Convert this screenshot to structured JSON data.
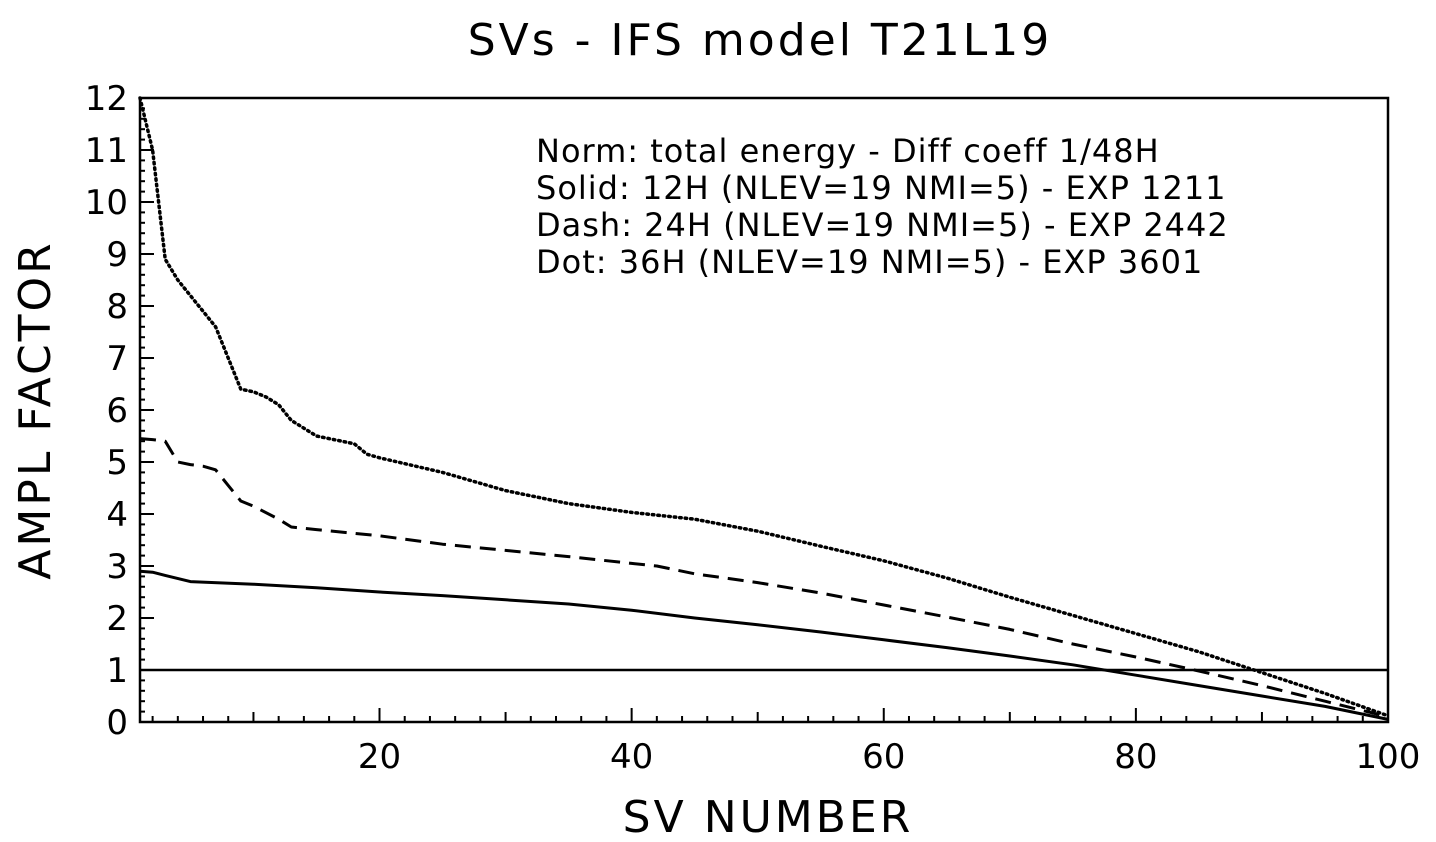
{
  "chart_data": {
    "type": "line",
    "title": "SVs - IFS model T21L19",
    "xlabel": "SV NUMBER",
    "ylabel": "AMPL FACTOR",
    "xlim": [
      1,
      100
    ],
    "ylim": [
      0,
      12
    ],
    "x_ticks": [
      20,
      40,
      60,
      80,
      100
    ],
    "y_ticks": [
      0,
      1,
      2,
      3,
      4,
      5,
      6,
      7,
      8,
      9,
      10,
      11,
      12
    ],
    "grid": false,
    "legend_placement": "top-right",
    "legend_lines": [
      "Norm: total energy - Diff coeff 1/48H",
      "Solid: 12H (NLEV=19 NMI=5) - EXP 1211",
      "Dash: 24H (NLEV=19 NMI=5) - EXP 2442",
      "Dot: 36H (NLEV=19 NMI=5) - EXP 3601"
    ],
    "reference_line": {
      "y": 1,
      "style": "solid"
    },
    "series": [
      {
        "style": "solid",
        "x": [
          1,
          2,
          3,
          5,
          10,
          15,
          20,
          25,
          30,
          35,
          40,
          45,
          50,
          55,
          60,
          65,
          70,
          75,
          80,
          85,
          90,
          95,
          100
        ],
        "y": [
          2.9,
          2.88,
          2.82,
          2.7,
          2.65,
          2.58,
          2.5,
          2.43,
          2.35,
          2.27,
          2.15,
          2.0,
          1.87,
          1.73,
          1.58,
          1.43,
          1.27,
          1.1,
          0.9,
          0.7,
          0.5,
          0.3,
          0.05
        ]
      },
      {
        "style": "dashed",
        "x": [
          1,
          2,
          3,
          4,
          5,
          6,
          7,
          8,
          9,
          10,
          12,
          13,
          15,
          20,
          25,
          30,
          35,
          40,
          42,
          45,
          50,
          55,
          60,
          65,
          70,
          75,
          80,
          85,
          90,
          95,
          100
        ],
        "y": [
          5.45,
          5.43,
          5.4,
          5.0,
          4.95,
          4.92,
          4.85,
          4.55,
          4.25,
          4.15,
          3.9,
          3.75,
          3.7,
          3.58,
          3.42,
          3.3,
          3.18,
          3.05,
          3.0,
          2.85,
          2.68,
          2.48,
          2.25,
          2.02,
          1.78,
          1.5,
          1.25,
          0.98,
          0.7,
          0.4,
          0.1
        ]
      },
      {
        "style": "dotted",
        "x": [
          1,
          2,
          3,
          4,
          5,
          6,
          7,
          8,
          9,
          10,
          11,
          12,
          13,
          15,
          18,
          19,
          20,
          25,
          30,
          35,
          40,
          45,
          50,
          55,
          60,
          65,
          70,
          75,
          80,
          85,
          90,
          95,
          100
        ],
        "y": [
          12.0,
          11.0,
          8.9,
          8.5,
          8.2,
          7.9,
          7.6,
          7.0,
          6.4,
          6.35,
          6.25,
          6.1,
          5.8,
          5.5,
          5.35,
          5.15,
          5.08,
          4.8,
          4.45,
          4.2,
          4.03,
          3.9,
          3.67,
          3.38,
          3.1,
          2.77,
          2.4,
          2.05,
          1.7,
          1.35,
          0.95,
          0.55,
          0.12
        ]
      }
    ]
  }
}
